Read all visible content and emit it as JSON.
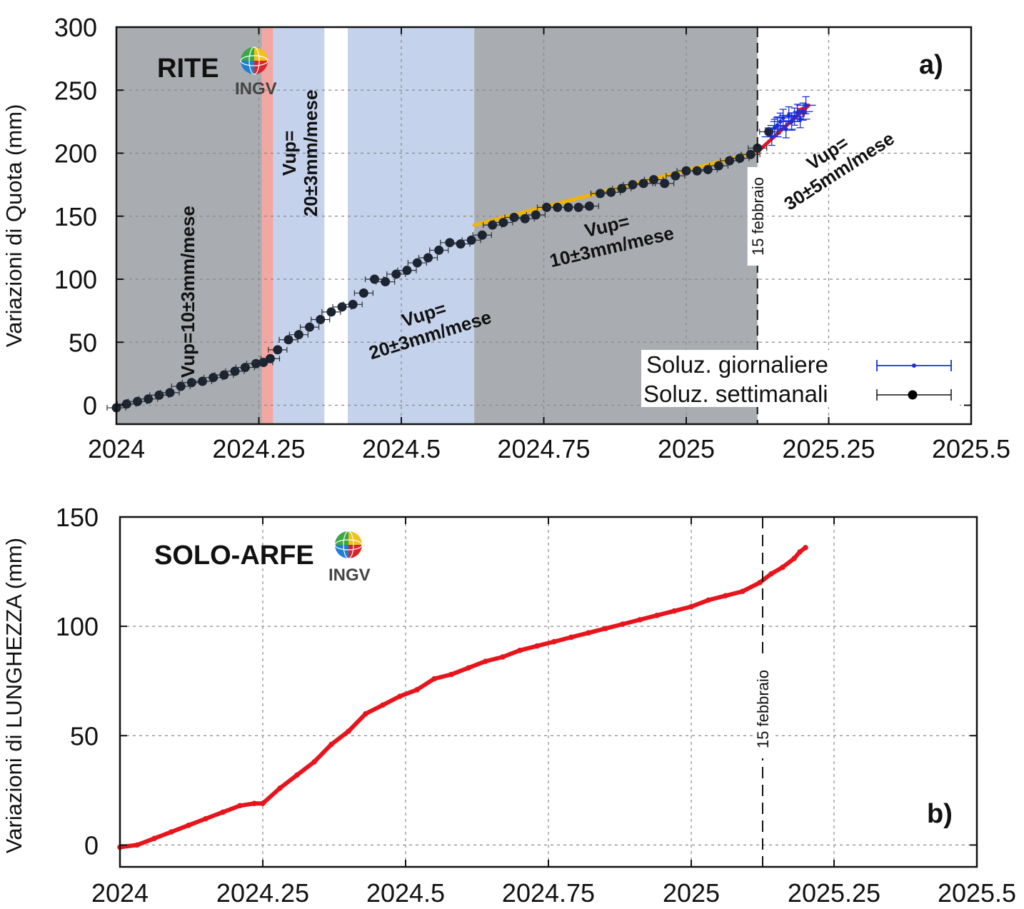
{
  "colors": {
    "gray_band": "#a9acb0",
    "blue_band": "#c5d2eb",
    "red_band": "#f3a7a3",
    "weekly_marker": "#1b2430",
    "daily_marker": "#1a2fd8",
    "yellow_trend": "#f2b400",
    "red_trend": "#e0142a",
    "length_series": "#e8141c"
  },
  "logo": {
    "text": "INGV",
    "icon": "globe-icon"
  },
  "chart_data": [
    {
      "type": "scatter",
      "panel_label": "a)",
      "station": "RITE",
      "xlabel": "",
      "ylabel": "Variazioni di Quota (mm)",
      "xlim": [
        2024,
        2025.5
      ],
      "ylim": [
        -15,
        300
      ],
      "xticks": [
        2024,
        2024.25,
        2024.5,
        2024.75,
        2025,
        2025.25,
        2025.5
      ],
      "xtick_labels": [
        "2024",
        "2024.25",
        "2024.5",
        "2024.75",
        "2025",
        "2025.25",
        "2025.5"
      ],
      "yticks": [
        0,
        50,
        100,
        150,
        200,
        250,
        300
      ],
      "ytick_labels": [
        "0",
        "50",
        "100",
        "150",
        "200",
        "250",
        "300"
      ],
      "bands": [
        {
          "from": 2024.0,
          "to": 2024.255,
          "kind": "gray"
        },
        {
          "from": 2024.255,
          "to": 2024.275,
          "kind": "red"
        },
        {
          "from": 2024.275,
          "to": 2024.365,
          "kind": "blue"
        },
        {
          "from": 2024.406,
          "to": 2024.628,
          "kind": "blue"
        },
        {
          "from": 2024.628,
          "to": 2025.125,
          "kind": "gray"
        }
      ],
      "event_date": 2025.125,
      "event_label": "15 febbraio",
      "weekly_solutions": [
        [
          2024.0,
          -2
        ],
        [
          2024.018,
          1
        ],
        [
          2024.037,
          3
        ],
        [
          2024.056,
          5
        ],
        [
          2024.075,
          8
        ],
        [
          2024.094,
          10
        ],
        [
          2024.113,
          15
        ],
        [
          2024.132,
          18
        ],
        [
          2024.151,
          19
        ],
        [
          2024.17,
          22
        ],
        [
          2024.189,
          24
        ],
        [
          2024.208,
          27
        ],
        [
          2024.226,
          30
        ],
        [
          2024.245,
          33
        ],
        [
          2024.258,
          34
        ],
        [
          2024.27,
          37
        ],
        [
          2024.283,
          44
        ],
        [
          2024.302,
          52
        ],
        [
          2024.32,
          56
        ],
        [
          2024.339,
          62
        ],
        [
          2024.358,
          68
        ],
        [
          2024.377,
          74
        ],
        [
          2024.396,
          78
        ],
        [
          2024.415,
          80
        ],
        [
          2024.434,
          89
        ],
        [
          2024.453,
          100
        ],
        [
          2024.472,
          98
        ],
        [
          2024.491,
          104
        ],
        [
          2024.51,
          107
        ],
        [
          2024.528,
          113
        ],
        [
          2024.547,
          117
        ],
        [
          2024.566,
          123
        ],
        [
          2024.585,
          129
        ],
        [
          2024.604,
          128
        ],
        [
          2024.623,
          131
        ],
        [
          2024.642,
          135
        ],
        [
          2024.66,
          143
        ],
        [
          2024.679,
          145
        ],
        [
          2024.698,
          149
        ],
        [
          2024.717,
          148
        ],
        [
          2024.736,
          151
        ],
        [
          2024.755,
          157
        ],
        [
          2024.774,
          157
        ],
        [
          2024.793,
          157
        ],
        [
          2024.811,
          157
        ],
        [
          2024.83,
          158
        ],
        [
          2024.849,
          168
        ],
        [
          2024.868,
          169
        ],
        [
          2024.887,
          172
        ],
        [
          2024.906,
          175
        ],
        [
          2024.925,
          176
        ],
        [
          2024.943,
          179
        ],
        [
          2024.962,
          176
        ],
        [
          2024.981,
          182
        ],
        [
          2025.0,
          186
        ],
        [
          2025.019,
          186
        ],
        [
          2025.038,
          187
        ],
        [
          2025.057,
          190
        ],
        [
          2025.076,
          194
        ],
        [
          2025.094,
          196
        ],
        [
          2025.113,
          199
        ],
        [
          2025.125,
          204
        ],
        [
          2025.145,
          217
        ]
      ],
      "daily_solutions": [
        [
          2025.15,
          213
        ],
        [
          2025.155,
          220
        ],
        [
          2025.16,
          222
        ],
        [
          2025.165,
          225
        ],
        [
          2025.17,
          228
        ],
        [
          2025.175,
          219
        ],
        [
          2025.18,
          230
        ],
        [
          2025.185,
          225
        ],
        [
          2025.19,
          229
        ],
        [
          2025.195,
          232
        ],
        [
          2025.2,
          227
        ],
        [
          2025.205,
          233
        ],
        [
          2025.21,
          238
        ]
      ],
      "trend_lines": [
        {
          "from": [
            2024.628,
            143
          ],
          "to": [
            2025.125,
            201
          ],
          "color_key": "yellow_trend"
        },
        {
          "from": [
            2025.125,
            201
          ],
          "to": [
            2025.215,
            238
          ],
          "color_key": "red_trend"
        }
      ],
      "annotations": [
        {
          "lines": [
            "Vup=10±3mm/mese"
          ],
          "x": 2024.125,
          "y": 90,
          "rotation": -90
        },
        {
          "lines": [
            "Vup=",
            "20±3mm/mese"
          ],
          "x": 2024.322,
          "y": 200,
          "rotation": -90
        },
        {
          "lines": [
            "Vup=",
            "20±3mm/mese"
          ],
          "x": 2024.545,
          "y": 64,
          "rotation": -17
        },
        {
          "lines": [
            "Vup=",
            "10±3mm/mese"
          ],
          "x": 2024.865,
          "y": 134,
          "rotation": -13
        },
        {
          "lines": [
            "Vup=",
            "30±5mm/mese"
          ],
          "x": 2025.258,
          "y": 193,
          "rotation": -33
        }
      ],
      "legend": [
        {
          "label": "Soluz. giornaliere",
          "marker": "daily"
        },
        {
          "label": "Soluz. settimanali",
          "marker": "weekly"
        }
      ]
    },
    {
      "type": "line",
      "panel_label": "b)",
      "station": "SOLO-ARFE",
      "xlabel": "",
      "ylabel": "Variazioni di LUNGHEZZA (mm)",
      "xlim": [
        2024,
        2025.5
      ],
      "ylim": [
        -10,
        150
      ],
      "xticks": [
        2024,
        2024.25,
        2024.5,
        2024.75,
        2025,
        2025.25,
        2025.5
      ],
      "xtick_labels": [
        "2024",
        "2024.25",
        "2024.5",
        "2024.75",
        "2025",
        "2025.25",
        "2025.5"
      ],
      "yticks": [
        0,
        50,
        100,
        150
      ],
      "ytick_labels": [
        "0",
        "50",
        "100",
        "150"
      ],
      "event_date": 2025.125,
      "event_label": "15 febbraio",
      "series": [
        {
          "name": "SOLO-ARFE",
          "points": [
            [
              2024.0,
              -1
            ],
            [
              2024.03,
              0
            ],
            [
              2024.06,
              3
            ],
            [
              2024.09,
              6
            ],
            [
              2024.12,
              9
            ],
            [
              2024.15,
              12
            ],
            [
              2024.18,
              15
            ],
            [
              2024.21,
              18
            ],
            [
              2024.235,
              19
            ],
            [
              2024.25,
              19
            ],
            [
              2024.28,
              26
            ],
            [
              2024.31,
              32
            ],
            [
              2024.34,
              38
            ],
            [
              2024.37,
              46
            ],
            [
              2024.4,
              52
            ],
            [
              2024.43,
              60
            ],
            [
              2024.46,
              64
            ],
            [
              2024.49,
              68
            ],
            [
              2024.52,
              71
            ],
            [
              2024.55,
              76
            ],
            [
              2024.58,
              78
            ],
            [
              2024.61,
              81
            ],
            [
              2024.64,
              84
            ],
            [
              2024.67,
              86
            ],
            [
              2024.7,
              89
            ],
            [
              2024.73,
              91
            ],
            [
              2024.76,
              93
            ],
            [
              2024.79,
              95
            ],
            [
              2024.82,
              97
            ],
            [
              2024.85,
              99
            ],
            [
              2024.88,
              101
            ],
            [
              2024.91,
              103
            ],
            [
              2024.94,
              105
            ],
            [
              2024.97,
              107
            ],
            [
              2025.0,
              109
            ],
            [
              2025.03,
              112
            ],
            [
              2025.06,
              114
            ],
            [
              2025.09,
              116
            ],
            [
              2025.12,
              120
            ],
            [
              2025.14,
              124
            ],
            [
              2025.16,
              127
            ],
            [
              2025.18,
              131
            ],
            [
              2025.19,
              134
            ],
            [
              2025.2,
              136
            ]
          ]
        }
      ]
    }
  ]
}
